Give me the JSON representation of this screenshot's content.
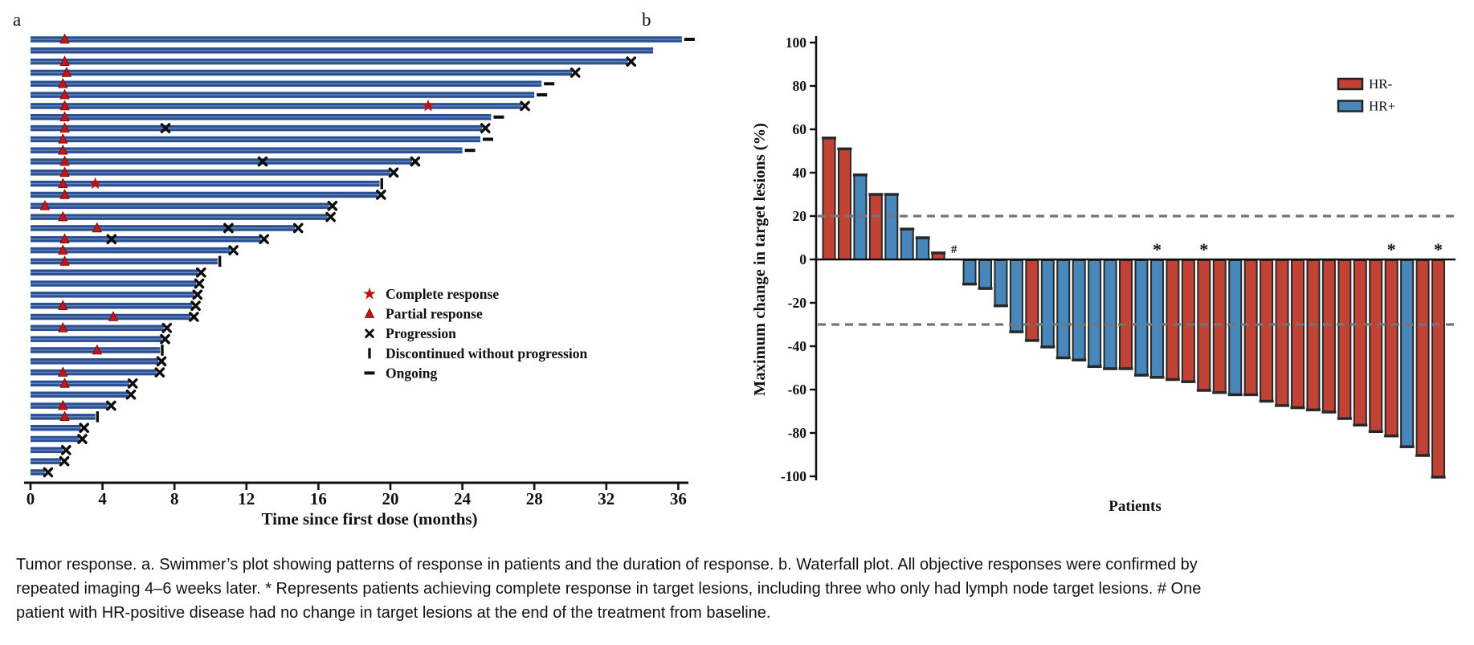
{
  "panel_a": {
    "label": "a"
  },
  "panel_b": {
    "label": "b"
  },
  "caption": "Tumor response. a. Swimmer’s plot showing patterns of response in patients and the duration of response. b. Waterfall plot. All objective responses were confirmed by repeated imaging 4–6 weeks later. * Represents patients achieving complete response in target lesions, including three who only had lymph node target lesions. # One patient with HR-positive disease had no change in target lesions at the end of the treatment from baseline.",
  "chart_data": [
    {
      "type": "swimmer_bar",
      "title": "",
      "xlabel": "Time since first dose (months)",
      "x_ticks": [
        0,
        4,
        8,
        12,
        16,
        20,
        24,
        28,
        32,
        36
      ],
      "xlim": [
        0,
        38
      ],
      "bar_color": "#2a4f92",
      "legend": [
        {
          "symbol": "star",
          "color": "#bf0f0f",
          "label": "Complete response"
        },
        {
          "symbol": "triangle",
          "color": "#cb1515",
          "label": "Partial response"
        },
        {
          "symbol": "x",
          "color": "#111111",
          "label": "Progression"
        },
        {
          "symbol": "bar",
          "color": "#111111",
          "label": "Discontinued without progression"
        },
        {
          "symbol": "dash",
          "color": "#111111",
          "label": "Ongoing"
        }
      ],
      "patients": [
        {
          "duration": 36.2,
          "end": "ongoing",
          "pr": 1.9,
          "cr": null,
          "x_marks": []
        },
        {
          "duration": 34.6,
          "end": "none",
          "pr": null,
          "cr": null,
          "x_marks": []
        },
        {
          "duration": 33.2,
          "end": "progression",
          "pr": 1.9,
          "cr": null,
          "x_marks": []
        },
        {
          "duration": 30.1,
          "end": "progression",
          "pr": 2.0,
          "cr": null,
          "x_marks": []
        },
        {
          "duration": 28.4,
          "end": "ongoing",
          "pr": 1.8,
          "cr": null,
          "x_marks": []
        },
        {
          "duration": 28.0,
          "end": "ongoing",
          "pr": 1.9,
          "cr": null,
          "x_marks": []
        },
        {
          "duration": 27.3,
          "end": "progression",
          "pr": 1.9,
          "cr": 22.1,
          "x_marks": []
        },
        {
          "duration": 25.6,
          "end": "ongoing",
          "pr": 1.9,
          "cr": null,
          "x_marks": []
        },
        {
          "duration": 25.1,
          "end": "progression",
          "pr": 1.9,
          "cr": null,
          "x_marks": [
            7.5
          ]
        },
        {
          "duration": 25.0,
          "end": "ongoing",
          "pr": 1.8,
          "cr": null,
          "x_marks": []
        },
        {
          "duration": 24.0,
          "end": "ongoing",
          "pr": 1.8,
          "cr": null,
          "x_marks": []
        },
        {
          "duration": 21.2,
          "end": "progression",
          "pr": 1.9,
          "cr": null,
          "x_marks": [
            12.9
          ]
        },
        {
          "duration": 20.0,
          "end": "progression",
          "pr": 1.9,
          "cr": null,
          "x_marks": []
        },
        {
          "duration": 19.4,
          "end": "discontinued",
          "pr": 1.8,
          "cr": 3.6,
          "x_marks": []
        },
        {
          "duration": 19.3,
          "end": "progression",
          "pr": 1.9,
          "cr": null,
          "x_marks": []
        },
        {
          "duration": 16.6,
          "end": "progression",
          "pr": 0.8,
          "cr": null,
          "x_marks": []
        },
        {
          "duration": 16.5,
          "end": "progression",
          "pr": 1.8,
          "cr": null,
          "x_marks": []
        },
        {
          "duration": 14.7,
          "end": "progression",
          "pr": 3.7,
          "cr": null,
          "x_marks": [
            11.0
          ]
        },
        {
          "duration": 12.8,
          "end": "progression",
          "pr": 1.9,
          "cr": null,
          "x_marks": [
            4.5
          ]
        },
        {
          "duration": 11.1,
          "end": "progression",
          "pr": 1.8,
          "cr": null,
          "x_marks": []
        },
        {
          "duration": 10.4,
          "end": "discontinued",
          "pr": 1.9,
          "cr": null,
          "x_marks": []
        },
        {
          "duration": 9.3,
          "end": "progression",
          "pr": null,
          "cr": null,
          "x_marks": []
        },
        {
          "duration": 9.2,
          "end": "progression",
          "pr": null,
          "cr": null,
          "x_marks": []
        },
        {
          "duration": 9.1,
          "end": "progression",
          "pr": null,
          "cr": null,
          "x_marks": []
        },
        {
          "duration": 9.0,
          "end": "progression",
          "pr": 1.8,
          "cr": null,
          "x_marks": []
        },
        {
          "duration": 8.9,
          "end": "progression",
          "pr": 4.6,
          "cr": null,
          "x_marks": []
        },
        {
          "duration": 7.4,
          "end": "progression",
          "pr": 1.8,
          "cr": null,
          "x_marks": []
        },
        {
          "duration": 7.3,
          "end": "progression",
          "pr": null,
          "cr": null,
          "x_marks": []
        },
        {
          "duration": 7.2,
          "end": "discontinued",
          "pr": 3.7,
          "cr": null,
          "x_marks": []
        },
        {
          "duration": 7.1,
          "end": "progression",
          "pr": null,
          "cr": null,
          "x_marks": []
        },
        {
          "duration": 7.0,
          "end": "progression",
          "pr": 1.8,
          "cr": null,
          "x_marks": []
        },
        {
          "duration": 5.5,
          "end": "progression",
          "pr": 1.9,
          "cr": null,
          "x_marks": []
        },
        {
          "duration": 5.4,
          "end": "progression",
          "pr": null,
          "cr": null,
          "x_marks": []
        },
        {
          "duration": 4.3,
          "end": "progression",
          "pr": 1.8,
          "cr": null,
          "x_marks": []
        },
        {
          "duration": 3.6,
          "end": "discontinued",
          "pr": 1.9,
          "cr": null,
          "x_marks": []
        },
        {
          "duration": 2.8,
          "end": "progression",
          "pr": null,
          "cr": null,
          "x_marks": []
        },
        {
          "duration": 2.7,
          "end": "progression",
          "pr": null,
          "cr": null,
          "x_marks": []
        },
        {
          "duration": 1.8,
          "end": "progression",
          "pr": null,
          "cr": null,
          "x_marks": []
        },
        {
          "duration": 1.7,
          "end": "progression",
          "pr": null,
          "cr": null,
          "x_marks": []
        },
        {
          "duration": 0.8,
          "end": "progression",
          "pr": null,
          "cr": null,
          "x_marks": []
        }
      ]
    },
    {
      "type": "bar",
      "title": "",
      "xlabel": "Patients",
      "ylabel": "Maximum change in target lesions (%)",
      "y_ticks": [
        100,
        80,
        60,
        40,
        20,
        0,
        -20,
        -40,
        -60,
        -80,
        -100
      ],
      "ylim": [
        -100,
        100
      ],
      "reference_lines": [
        20,
        -30
      ],
      "grid": false,
      "legend_position": "top-right",
      "groups": {
        "HR-": "#c14335",
        "HR+": "#4787bb"
      },
      "legend": [
        {
          "label": "HR-",
          "color": "#c14335"
        },
        {
          "label": "HR+",
          "color": "#4787bb"
        }
      ],
      "zero_symbol": "#",
      "complete_response_symbol": "*",
      "patients": [
        {
          "value": 56,
          "group": "HR-"
        },
        {
          "value": 51,
          "group": "HR-"
        },
        {
          "value": 39,
          "group": "HR+"
        },
        {
          "value": 30,
          "group": "HR-"
        },
        {
          "value": 30,
          "group": "HR+"
        },
        {
          "value": 14,
          "group": "HR+"
        },
        {
          "value": 10,
          "group": "HR+"
        },
        {
          "value": 3,
          "group": "HR-"
        },
        {
          "value": 0,
          "group": "HR+",
          "hash": true
        },
        {
          "value": -11,
          "group": "HR+"
        },
        {
          "value": -13,
          "group": "HR+"
        },
        {
          "value": -21,
          "group": "HR+"
        },
        {
          "value": -33,
          "group": "HR+"
        },
        {
          "value": -37,
          "group": "HR-"
        },
        {
          "value": -40,
          "group": "HR+"
        },
        {
          "value": -45,
          "group": "HR+"
        },
        {
          "value": -46,
          "group": "HR+"
        },
        {
          "value": -49,
          "group": "HR+"
        },
        {
          "value": -50,
          "group": "HR+"
        },
        {
          "value": -50,
          "group": "HR-"
        },
        {
          "value": -53,
          "group": "HR+"
        },
        {
          "value": -54,
          "group": "HR+",
          "star": true
        },
        {
          "value": -55,
          "group": "HR-"
        },
        {
          "value": -56,
          "group": "HR-"
        },
        {
          "value": -60,
          "group": "HR-",
          "star": true
        },
        {
          "value": -61,
          "group": "HR-"
        },
        {
          "value": -62,
          "group": "HR+"
        },
        {
          "value": -62,
          "group": "HR-"
        },
        {
          "value": -65,
          "group": "HR-"
        },
        {
          "value": -67,
          "group": "HR-"
        },
        {
          "value": -68,
          "group": "HR-"
        },
        {
          "value": -69,
          "group": "HR-"
        },
        {
          "value": -70,
          "group": "HR-"
        },
        {
          "value": -73,
          "group": "HR-"
        },
        {
          "value": -76,
          "group": "HR-"
        },
        {
          "value": -79,
          "group": "HR-"
        },
        {
          "value": -81,
          "group": "HR-",
          "star": true
        },
        {
          "value": -86,
          "group": "HR+"
        },
        {
          "value": -90,
          "group": "HR-"
        },
        {
          "value": -100,
          "group": "HR-",
          "star": true
        }
      ]
    }
  ]
}
